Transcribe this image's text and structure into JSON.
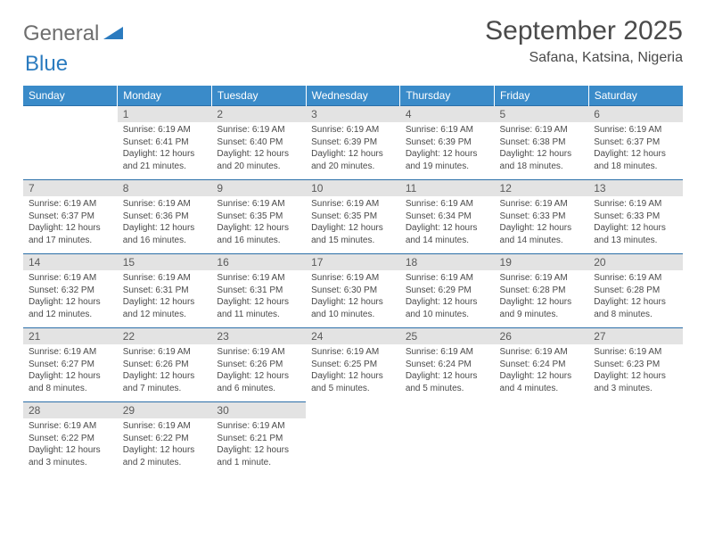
{
  "logo": {
    "text1": "General",
    "text2": "Blue"
  },
  "title": "September 2025",
  "location": "Safana, Katsina, Nigeria",
  "colors": {
    "header_bg": "#3a8bc9",
    "header_text": "#ffffff",
    "daynum_bg": "#e3e3e3",
    "daynum_text": "#5a5a5a",
    "row_border": "#2b6fa8",
    "body_text": "#4a4a4a",
    "logo_gray": "#6e6e6e",
    "logo_blue": "#2b7bbf"
  },
  "day_headers": [
    "Sunday",
    "Monday",
    "Tuesday",
    "Wednesday",
    "Thursday",
    "Friday",
    "Saturday"
  ],
  "weeks": [
    [
      {
        "n": "",
        "sunrise": "",
        "sunset": "",
        "daylight": ""
      },
      {
        "n": "1",
        "sunrise": "Sunrise: 6:19 AM",
        "sunset": "Sunset: 6:41 PM",
        "daylight": "Daylight: 12 hours and 21 minutes."
      },
      {
        "n": "2",
        "sunrise": "Sunrise: 6:19 AM",
        "sunset": "Sunset: 6:40 PM",
        "daylight": "Daylight: 12 hours and 20 minutes."
      },
      {
        "n": "3",
        "sunrise": "Sunrise: 6:19 AM",
        "sunset": "Sunset: 6:39 PM",
        "daylight": "Daylight: 12 hours and 20 minutes."
      },
      {
        "n": "4",
        "sunrise": "Sunrise: 6:19 AM",
        "sunset": "Sunset: 6:39 PM",
        "daylight": "Daylight: 12 hours and 19 minutes."
      },
      {
        "n": "5",
        "sunrise": "Sunrise: 6:19 AM",
        "sunset": "Sunset: 6:38 PM",
        "daylight": "Daylight: 12 hours and 18 minutes."
      },
      {
        "n": "6",
        "sunrise": "Sunrise: 6:19 AM",
        "sunset": "Sunset: 6:37 PM",
        "daylight": "Daylight: 12 hours and 18 minutes."
      }
    ],
    [
      {
        "n": "7",
        "sunrise": "Sunrise: 6:19 AM",
        "sunset": "Sunset: 6:37 PM",
        "daylight": "Daylight: 12 hours and 17 minutes."
      },
      {
        "n": "8",
        "sunrise": "Sunrise: 6:19 AM",
        "sunset": "Sunset: 6:36 PM",
        "daylight": "Daylight: 12 hours and 16 minutes."
      },
      {
        "n": "9",
        "sunrise": "Sunrise: 6:19 AM",
        "sunset": "Sunset: 6:35 PM",
        "daylight": "Daylight: 12 hours and 16 minutes."
      },
      {
        "n": "10",
        "sunrise": "Sunrise: 6:19 AM",
        "sunset": "Sunset: 6:35 PM",
        "daylight": "Daylight: 12 hours and 15 minutes."
      },
      {
        "n": "11",
        "sunrise": "Sunrise: 6:19 AM",
        "sunset": "Sunset: 6:34 PM",
        "daylight": "Daylight: 12 hours and 14 minutes."
      },
      {
        "n": "12",
        "sunrise": "Sunrise: 6:19 AM",
        "sunset": "Sunset: 6:33 PM",
        "daylight": "Daylight: 12 hours and 14 minutes."
      },
      {
        "n": "13",
        "sunrise": "Sunrise: 6:19 AM",
        "sunset": "Sunset: 6:33 PM",
        "daylight": "Daylight: 12 hours and 13 minutes."
      }
    ],
    [
      {
        "n": "14",
        "sunrise": "Sunrise: 6:19 AM",
        "sunset": "Sunset: 6:32 PM",
        "daylight": "Daylight: 12 hours and 12 minutes."
      },
      {
        "n": "15",
        "sunrise": "Sunrise: 6:19 AM",
        "sunset": "Sunset: 6:31 PM",
        "daylight": "Daylight: 12 hours and 12 minutes."
      },
      {
        "n": "16",
        "sunrise": "Sunrise: 6:19 AM",
        "sunset": "Sunset: 6:31 PM",
        "daylight": "Daylight: 12 hours and 11 minutes."
      },
      {
        "n": "17",
        "sunrise": "Sunrise: 6:19 AM",
        "sunset": "Sunset: 6:30 PM",
        "daylight": "Daylight: 12 hours and 10 minutes."
      },
      {
        "n": "18",
        "sunrise": "Sunrise: 6:19 AM",
        "sunset": "Sunset: 6:29 PM",
        "daylight": "Daylight: 12 hours and 10 minutes."
      },
      {
        "n": "19",
        "sunrise": "Sunrise: 6:19 AM",
        "sunset": "Sunset: 6:28 PM",
        "daylight": "Daylight: 12 hours and 9 minutes."
      },
      {
        "n": "20",
        "sunrise": "Sunrise: 6:19 AM",
        "sunset": "Sunset: 6:28 PM",
        "daylight": "Daylight: 12 hours and 8 minutes."
      }
    ],
    [
      {
        "n": "21",
        "sunrise": "Sunrise: 6:19 AM",
        "sunset": "Sunset: 6:27 PM",
        "daylight": "Daylight: 12 hours and 8 minutes."
      },
      {
        "n": "22",
        "sunrise": "Sunrise: 6:19 AM",
        "sunset": "Sunset: 6:26 PM",
        "daylight": "Daylight: 12 hours and 7 minutes."
      },
      {
        "n": "23",
        "sunrise": "Sunrise: 6:19 AM",
        "sunset": "Sunset: 6:26 PM",
        "daylight": "Daylight: 12 hours and 6 minutes."
      },
      {
        "n": "24",
        "sunrise": "Sunrise: 6:19 AM",
        "sunset": "Sunset: 6:25 PM",
        "daylight": "Daylight: 12 hours and 5 minutes."
      },
      {
        "n": "25",
        "sunrise": "Sunrise: 6:19 AM",
        "sunset": "Sunset: 6:24 PM",
        "daylight": "Daylight: 12 hours and 5 minutes."
      },
      {
        "n": "26",
        "sunrise": "Sunrise: 6:19 AM",
        "sunset": "Sunset: 6:24 PM",
        "daylight": "Daylight: 12 hours and 4 minutes."
      },
      {
        "n": "27",
        "sunrise": "Sunrise: 6:19 AM",
        "sunset": "Sunset: 6:23 PM",
        "daylight": "Daylight: 12 hours and 3 minutes."
      }
    ],
    [
      {
        "n": "28",
        "sunrise": "Sunrise: 6:19 AM",
        "sunset": "Sunset: 6:22 PM",
        "daylight": "Daylight: 12 hours and 3 minutes."
      },
      {
        "n": "29",
        "sunrise": "Sunrise: 6:19 AM",
        "sunset": "Sunset: 6:22 PM",
        "daylight": "Daylight: 12 hours and 2 minutes."
      },
      {
        "n": "30",
        "sunrise": "Sunrise: 6:19 AM",
        "sunset": "Sunset: 6:21 PM",
        "daylight": "Daylight: 12 hours and 1 minute."
      },
      {
        "n": "",
        "sunrise": "",
        "sunset": "",
        "daylight": ""
      },
      {
        "n": "",
        "sunrise": "",
        "sunset": "",
        "daylight": ""
      },
      {
        "n": "",
        "sunrise": "",
        "sunset": "",
        "daylight": ""
      },
      {
        "n": "",
        "sunrise": "",
        "sunset": "",
        "daylight": ""
      }
    ]
  ]
}
